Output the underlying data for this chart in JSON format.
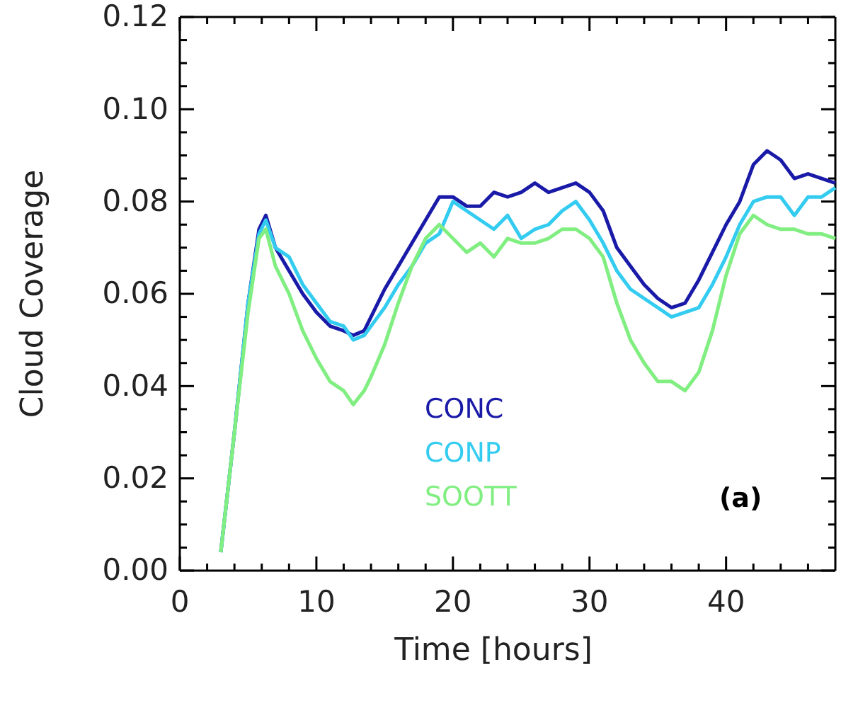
{
  "chart_data": {
    "type": "line",
    "xlabel": "Time [hours]",
    "ylabel": "Cloud Coverage",
    "x": [
      3,
      4,
      5,
      5.8,
      6.3,
      7,
      8,
      9,
      10,
      11,
      12,
      12.7,
      13.5,
      14,
      15,
      16,
      17,
      18,
      19,
      20,
      21,
      22,
      23,
      24,
      25,
      26,
      27,
      28,
      29,
      30,
      31,
      32,
      33,
      34,
      35,
      36,
      37,
      38,
      39,
      40,
      41,
      42,
      43,
      44,
      45,
      46,
      47,
      48
    ],
    "series": [
      {
        "name": "CONC",
        "color": "#1a1aa8",
        "values": [
          0.004,
          0.03,
          0.058,
          0.074,
          0.077,
          0.07,
          0.065,
          0.06,
          0.056,
          0.053,
          0.052,
          0.051,
          0.052,
          0.055,
          0.061,
          0.066,
          0.071,
          0.076,
          0.081,
          0.081,
          0.079,
          0.079,
          0.082,
          0.081,
          0.082,
          0.084,
          0.082,
          0.083,
          0.084,
          0.082,
          0.078,
          0.07,
          0.066,
          0.062,
          0.059,
          0.057,
          0.058,
          0.063,
          0.069,
          0.075,
          0.08,
          0.088,
          0.091,
          0.089,
          0.085,
          0.086,
          0.085,
          0.084
        ]
      },
      {
        "name": "CONP",
        "color": "#33ccf0",
        "values": [
          0.004,
          0.03,
          0.058,
          0.073,
          0.076,
          0.07,
          0.068,
          0.062,
          0.058,
          0.054,
          0.053,
          0.05,
          0.051,
          0.053,
          0.057,
          0.062,
          0.066,
          0.071,
          0.073,
          0.08,
          0.078,
          0.076,
          0.074,
          0.077,
          0.072,
          0.074,
          0.075,
          0.078,
          0.08,
          0.076,
          0.071,
          0.065,
          0.061,
          0.059,
          0.057,
          0.055,
          0.056,
          0.057,
          0.062,
          0.068,
          0.075,
          0.08,
          0.081,
          0.081,
          0.077,
          0.081,
          0.081,
          0.083
        ]
      },
      {
        "name": "SOOTT",
        "color": "#80ee80",
        "values": [
          0.004,
          0.03,
          0.056,
          0.072,
          0.074,
          0.066,
          0.06,
          0.052,
          0.046,
          0.041,
          0.039,
          0.036,
          0.039,
          0.042,
          0.049,
          0.058,
          0.066,
          0.072,
          0.075,
          0.072,
          0.069,
          0.071,
          0.068,
          0.072,
          0.071,
          0.071,
          0.072,
          0.074,
          0.074,
          0.072,
          0.068,
          0.058,
          0.05,
          0.045,
          0.041,
          0.041,
          0.039,
          0.043,
          0.052,
          0.064,
          0.073,
          0.077,
          0.075,
          0.074,
          0.074,
          0.073,
          0.073,
          0.072
        ]
      }
    ],
    "xlim": [
      0,
      48
    ],
    "xticks": [
      0,
      {
        "value": 2,
        "label": null
      },
      {
        "value": 4,
        "label": null
      },
      {
        "value": 6,
        "label": null
      },
      {
        "value": 8,
        "label": null
      },
      10,
      {
        "value": 12,
        "label": null
      },
      {
        "value": 14,
        "label": null
      },
      {
        "value": 16,
        "label": null
      },
      {
        "value": 18,
        "label": null
      },
      20,
      {
        "value": 22,
        "label": null
      },
      {
        "value": 24,
        "label": null
      },
      {
        "value": 26,
        "label": null
      },
      {
        "value": 28,
        "label": null
      },
      30,
      {
        "value": 32,
        "label": null
      },
      {
        "value": 34,
        "label": null
      },
      {
        "value": 36,
        "label": null
      },
      {
        "value": 38,
        "label": null
      },
      40,
      {
        "value": 42,
        "label": null
      },
      {
        "value": 44,
        "label": null
      },
      {
        "value": 46,
        "label": null
      }
    ],
    "ylim": [
      0,
      0.12
    ],
    "yticks": [
      {
        "value": 0,
        "label": "0.00"
      },
      {
        "value": 0.005,
        "label": null
      },
      {
        "value": 0.01,
        "label": null
      },
      {
        "value": 0.015,
        "label": null
      },
      {
        "value": 0.02,
        "label": "0.02"
      },
      {
        "value": 0.025,
        "label": null
      },
      {
        "value": 0.03,
        "label": null
      },
      {
        "value": 0.035,
        "label": null
      },
      {
        "value": 0.04,
        "label": "0.04"
      },
      {
        "value": 0.045,
        "label": null
      },
      {
        "value": 0.05,
        "label": null
      },
      {
        "value": 0.055,
        "label": null
      },
      {
        "value": 0.06,
        "label": "0.06"
      },
      {
        "value": 0.065,
        "label": null
      },
      {
        "value": 0.07,
        "label": null
      },
      {
        "value": 0.075,
        "label": null
      },
      {
        "value": 0.08,
        "label": "0.08"
      },
      {
        "value": 0.085,
        "label": null
      },
      {
        "value": 0.09,
        "label": null
      },
      {
        "value": 0.095,
        "label": null
      },
      {
        "value": 0.1,
        "label": "0.10"
      },
      {
        "value": 0.105,
        "label": null
      },
      {
        "value": 0.11,
        "label": null
      },
      {
        "value": 0.115,
        "label": null
      },
      {
        "value": 0.12,
        "label": "0.12"
      }
    ],
    "legend": "bottom",
    "grid": false,
    "marker": "none",
    "line_style": "solid",
    "annotations": [
      "(a)"
    ]
  }
}
